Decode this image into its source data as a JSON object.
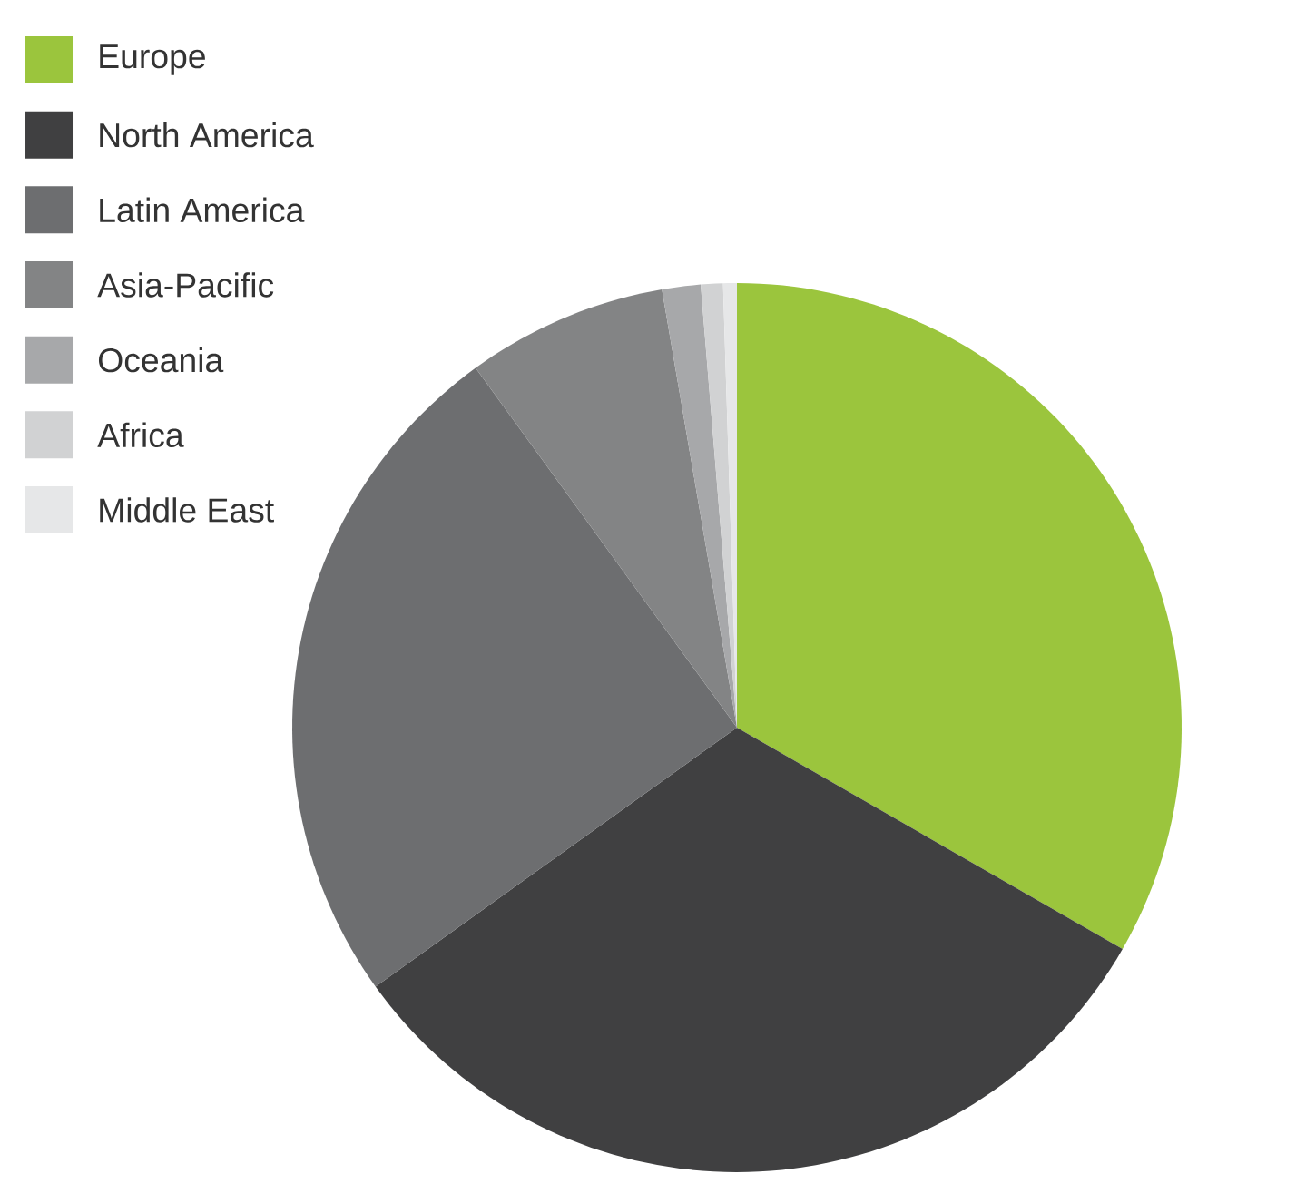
{
  "chart_data": {
    "type": "pie",
    "categories": [
      "Europe",
      "North America",
      "Latin America",
      "Asia-Pacific",
      "Oceania",
      "Africa",
      "Middle East"
    ],
    "values": [
      33.3,
      31.8,
      24.9,
      7.3,
      1.4,
      0.8,
      0.5
    ],
    "colors": [
      "#9bc53d",
      "#404041",
      "#6d6e70",
      "#838485",
      "#a7a8aa",
      "#d1d2d3",
      "#e6e7e8"
    ],
    "legend": "top left"
  }
}
